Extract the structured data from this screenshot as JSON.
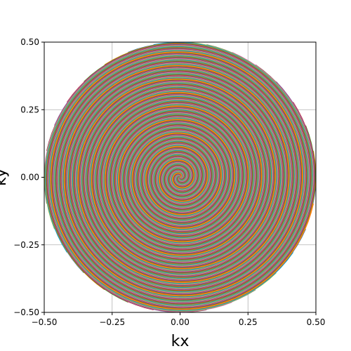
{
  "chart_data": {
    "type": "line",
    "title": "",
    "xlabel": "kx",
    "ylabel": "ky",
    "xlim": [
      -0.5,
      0.5
    ],
    "ylim": [
      -0.5,
      0.5
    ],
    "xticks": [
      -0.5,
      -0.25,
      0.0,
      0.25,
      0.5
    ],
    "yticks": [
      -0.5,
      -0.25,
      0.0,
      0.25,
      0.5
    ],
    "xtick_labels": [
      "−0.50",
      "−0.25",
      "0.00",
      "0.25",
      "0.50"
    ],
    "ytick_labels": [
      "−0.50",
      "−0.25",
      "0.00",
      "0.25",
      "0.50"
    ],
    "grid": true,
    "legend": "none",
    "trajectory": {
      "kind": "interleaved archimedean spiral",
      "interleaves": 32,
      "turns": 10,
      "k_max": 0.5,
      "direction": "counter-clockwise outward from center"
    },
    "series_colors": [
      "#1f77b4",
      "#ff7f0e",
      "#2ca02c",
      "#d62728",
      "#9467bd",
      "#8c564b",
      "#e377c2",
      "#7f7f7f",
      "#bcbd22",
      "#17becf"
    ]
  }
}
